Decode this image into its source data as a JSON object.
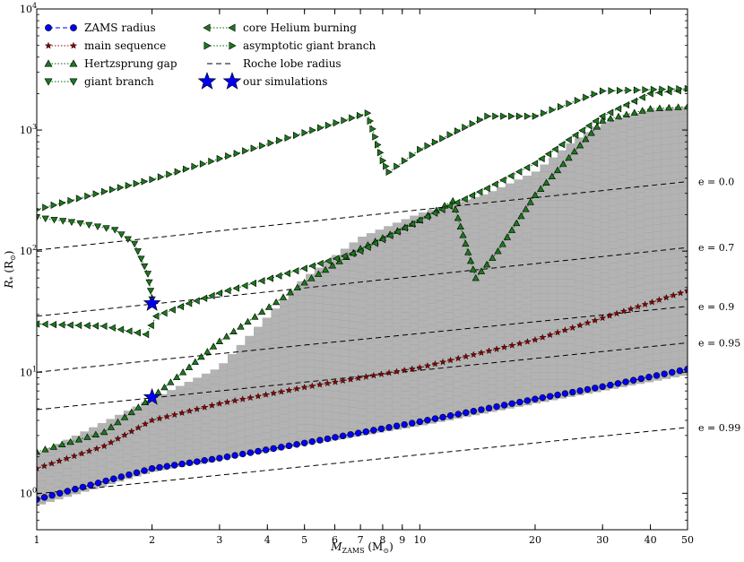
{
  "chart_data": {
    "type": "line",
    "xscale": "log",
    "yscale": "log",
    "xlim": [
      1,
      50
    ],
    "ylim": [
      0.5,
      10000
    ],
    "xlabel": "M_ZAMS (M⊙)",
    "ylabel": "R* (R⊙)",
    "xlabel_parts": {
      "main": "M",
      "sub": "ZAMS",
      "unit": " (M",
      "unit_sub": "⊙",
      "close": ")"
    },
    "ylabel_parts": {
      "main": "R",
      "sub": "*",
      "unit": " (R",
      "unit_sub": "⊙",
      "close": ")"
    },
    "x_ticks": [
      {
        "v": 1,
        "label": "1"
      },
      {
        "v": 2,
        "label": "2"
      },
      {
        "v": 3,
        "label": "3"
      },
      {
        "v": 4,
        "label": "4"
      },
      {
        "v": 5,
        "label": "5"
      },
      {
        "v": 6,
        "label": "6"
      },
      {
        "v": 7,
        "label": "7"
      },
      {
        "v": 8,
        "label": "8"
      },
      {
        "v": 9,
        "label": "9"
      },
      {
        "v": 10,
        "label": "10"
      },
      {
        "v": 20,
        "label": "20"
      },
      {
        "v": 30,
        "label": "30"
      },
      {
        "v": 40,
        "label": "40"
      },
      {
        "v": 50,
        "label": "50"
      }
    ],
    "y_ticks": [
      {
        "v": 1,
        "base": "10",
        "exp": "0"
      },
      {
        "v": 10,
        "base": "10",
        "exp": "1"
      },
      {
        "v": 100,
        "base": "10",
        "exp": "2"
      },
      {
        "v": 1000,
        "base": "10",
        "exp": "3"
      },
      {
        "v": 10000,
        "base": "10",
        "exp": "4"
      }
    ],
    "legend": {
      "placement": "top-left",
      "entries": [
        {
          "label": "ZAMS radius",
          "series": "zams"
        },
        {
          "label": "main sequence",
          "series": "ms"
        },
        {
          "label": "Hertzsprung gap",
          "series": "hg"
        },
        {
          "label": "giant branch",
          "series": "gb"
        },
        {
          "label": "core Helium burning",
          "series": "cheb"
        },
        {
          "label": "asymptotic giant branch",
          "series": "agb"
        },
        {
          "label": "Roche lobe radius",
          "series": "roche"
        },
        {
          "label": "our simulations",
          "series": "sims"
        }
      ]
    },
    "colors": {
      "zams": "#0000ff",
      "ms_face": "#8b0000",
      "green_face": "#1a7a1a",
      "green_line": "#006400",
      "shade": "#b3b3b3",
      "star": "#0000ee"
    },
    "series": [
      {
        "key": "zams",
        "name": "ZAMS radius",
        "points": [
          [
            1,
            0.89
          ],
          [
            2,
            1.6
          ],
          [
            3,
            1.95
          ],
          [
            5,
            2.6
          ],
          [
            10,
            3.9
          ],
          [
            20,
            6.0
          ],
          [
            30,
            7.6
          ],
          [
            50,
            10.6
          ]
        ]
      },
      {
        "key": "ms",
        "name": "main sequence",
        "points": [
          [
            1,
            1.6
          ],
          [
            1.5,
            2.45
          ],
          [
            2,
            4.0
          ],
          [
            3,
            5.5
          ],
          [
            5,
            7.5
          ],
          [
            10,
            10.9
          ],
          [
            20,
            18.5
          ],
          [
            30,
            28
          ],
          [
            50,
            47
          ]
        ]
      },
      {
        "key": "hg",
        "name": "Hertzsprung gap",
        "points": [
          [
            1,
            2.2
          ],
          [
            1.5,
            3.2
          ],
          [
            2,
            6.2
          ],
          [
            2.5,
            11
          ],
          [
            3,
            18
          ],
          [
            5,
            55
          ],
          [
            7,
            105
          ],
          [
            10,
            180
          ],
          [
            12.2,
            260
          ],
          [
            14,
            60
          ],
          [
            16,
            100
          ],
          [
            20,
            290
          ],
          [
            30,
            1200
          ],
          [
            40,
            1500
          ],
          [
            50,
            1560
          ]
        ]
      },
      {
        "key": "gb",
        "name": "giant branch",
        "points": [
          [
            1,
            190
          ],
          [
            1.3,
            170
          ],
          [
            1.6,
            150
          ],
          [
            1.8,
            115
          ],
          [
            1.95,
            65
          ],
          [
            2.0,
            40
          ]
        ]
      },
      {
        "key": "cheb",
        "name": "core Helium burning",
        "points": [
          [
            1,
            25
          ],
          [
            1.5,
            24
          ],
          [
            1.93,
            20.5
          ],
          [
            2.05,
            29
          ],
          [
            2.5,
            37
          ],
          [
            3,
            45
          ],
          [
            5,
            72
          ],
          [
            7,
            100
          ],
          [
            10,
            180
          ],
          [
            15,
            330
          ],
          [
            20,
            530
          ],
          [
            30,
            1300
          ],
          [
            40,
            2000
          ],
          [
            50,
            2150
          ]
        ]
      },
      {
        "key": "agb",
        "name": "asymptotic giant branch",
        "points": [
          [
            1,
            220
          ],
          [
            1.5,
            310
          ],
          [
            2,
            390
          ],
          [
            3,
            580
          ],
          [
            5,
            950
          ],
          [
            7.3,
            1380
          ],
          [
            8.0,
            560
          ],
          [
            8.3,
            450
          ],
          [
            10,
            690
          ],
          [
            15,
            1300
          ],
          [
            20,
            1300
          ],
          [
            30,
            2100
          ],
          [
            50,
            2200
          ]
        ]
      },
      {
        "key": "sims",
        "name": "our simulations",
        "points": [
          [
            2,
            37
          ],
          [
            2,
            6.2
          ]
        ]
      }
    ],
    "roche_lines": [
      {
        "e": "e = 0.0",
        "r1": 102,
        "r50": 375
      },
      {
        "e": "e = 0.7",
        "r1": 29,
        "r50": 107
      },
      {
        "e": "e = 0.9",
        "r1": 10,
        "r50": 35
      },
      {
        "e": "e = 0.95",
        "r1": 4.9,
        "r50": 17.5
      },
      {
        "e": "e = 0.99",
        "r1": 0.99,
        "r50": 3.5
      }
    ],
    "shaded_region": {
      "lower": [
        [
          1,
          0.79
        ],
        [
          2,
          1.5
        ],
        [
          5,
          2.5
        ],
        [
          10,
          3.6
        ],
        [
          20,
          5.5
        ],
        [
          50,
          9.5
        ]
      ],
      "upper": [
        [
          1,
          2.1
        ],
        [
          2,
          6.0
        ],
        [
          3,
          11
        ],
        [
          5,
          60
        ],
        [
          7,
          130
        ],
        [
          10,
          205
        ],
        [
          15,
          300
        ],
        [
          20,
          450
        ],
        [
          25,
          800
        ],
        [
          30,
          1150
        ],
        [
          40,
          1450
        ],
        [
          50,
          1560
        ]
      ]
    }
  }
}
